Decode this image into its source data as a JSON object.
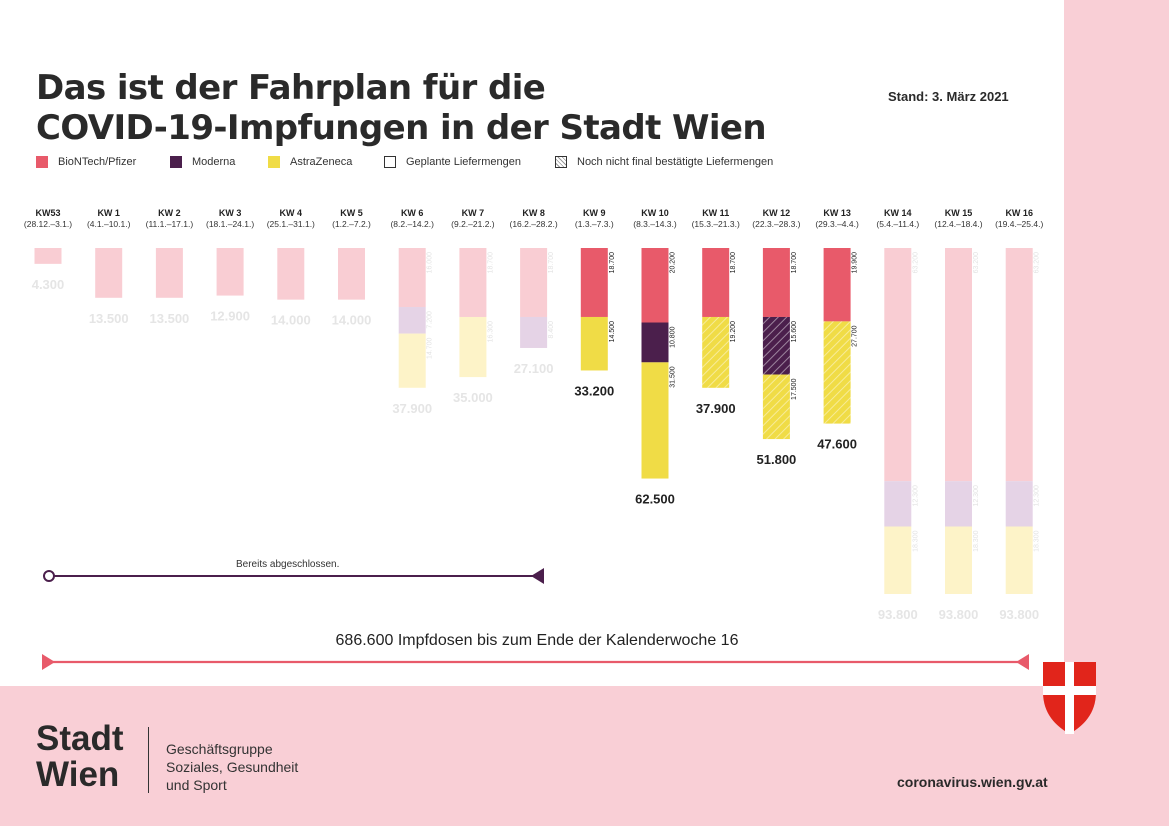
{
  "header": {
    "title_line1": "Das ist der Fahrplan für die",
    "title_line2": "COVID-19-Impfungen in der Stadt Wien",
    "stand": "Stand: 3. März 2021"
  },
  "legend": {
    "biontech": "BioNTech/Pfizer",
    "moderna": "Moderna",
    "astrazeneca": "AstraZeneca",
    "planned": "Geplante Liefermengen",
    "unconfirmed": "Noch nicht final bestätigte Liefermengen"
  },
  "colors": {
    "biontech": "#e85a6a",
    "moderna": "#4b1f4c",
    "astrazeneca": "#f0dc46",
    "biontech_light": "#f9cdd3",
    "moderna_light": "#e5d3e6",
    "astrazeneca_light": "#fdf3c8",
    "faded_text": "#e5e5e5",
    "timeline_purple": "#4b1f4c",
    "timeline_pink": "#e85a6a"
  },
  "chart_data": {
    "type": "bar",
    "stacked": true,
    "title": "Das ist der Fahrplan für die COVID-19-Impfungen in der Stadt Wien",
    "unit": "Impfdosen",
    "series_names": [
      "BioNTech/Pfizer",
      "Moderna",
      "AstraZeneca"
    ],
    "weeks": [
      {
        "kw": "KW53",
        "dates": "(28.12.–3.1.)",
        "total": "4.300",
        "status": "completed",
        "segments": [
          {
            "s": "biontech",
            "value": 4300,
            "label": ""
          }
        ]
      },
      {
        "kw": "KW 1",
        "dates": "(4.1.–10.1.)",
        "total": "13.500",
        "status": "completed",
        "segments": [
          {
            "s": "biontech",
            "value": 13500,
            "label": ""
          }
        ]
      },
      {
        "kw": "KW 2",
        "dates": "(11.1.–17.1.)",
        "total": "13.500",
        "status": "completed",
        "segments": [
          {
            "s": "biontech",
            "value": 13500,
            "label": ""
          }
        ]
      },
      {
        "kw": "KW 3",
        "dates": "(18.1.–24.1.)",
        "total": "12.900",
        "status": "completed",
        "segments": [
          {
            "s": "biontech",
            "value": 12900,
            "label": ""
          }
        ]
      },
      {
        "kw": "KW 4",
        "dates": "(25.1.–31.1.)",
        "total": "14.000",
        "status": "completed",
        "segments": [
          {
            "s": "biontech",
            "value": 14000,
            "label": ""
          }
        ]
      },
      {
        "kw": "KW 5",
        "dates": "(1.2.–7.2.)",
        "total": "14.000",
        "status": "completed",
        "segments": [
          {
            "s": "biontech",
            "value": 14000,
            "label": ""
          }
        ]
      },
      {
        "kw": "KW 6",
        "dates": "(8.2.–14.2.)",
        "total": "37.900",
        "status": "completed",
        "segments": [
          {
            "s": "biontech",
            "value": 16000,
            "label": "16.000"
          },
          {
            "s": "moderna",
            "value": 7200,
            "label": "7.200"
          },
          {
            "s": "astrazeneca",
            "value": 14700,
            "label": "14.700"
          }
        ]
      },
      {
        "kw": "KW 7",
        "dates": "(9.2.–21.2.)",
        "total": "35.000",
        "status": "completed",
        "segments": [
          {
            "s": "biontech",
            "value": 18700,
            "label": "18.700"
          },
          {
            "s": "astrazeneca",
            "value": 16300,
            "label": "16.300"
          }
        ]
      },
      {
        "kw": "KW 8",
        "dates": "(16.2.–28.2.)",
        "total": "27.100",
        "status": "completed",
        "segments": [
          {
            "s": "biontech",
            "value": 18700,
            "label": "18.700"
          },
          {
            "s": "moderna",
            "value": 8400,
            "label": "8.400"
          }
        ]
      },
      {
        "kw": "KW 9",
        "dates": "(1.3.–7.3.)",
        "total": "33.200",
        "status": "planned",
        "segments": [
          {
            "s": "biontech",
            "value": 18700,
            "label": "18.700"
          },
          {
            "s": "astrazeneca",
            "value": 14500,
            "label": "14.500"
          }
        ]
      },
      {
        "kw": "KW 10",
        "dates": "(8.3.–14.3.)",
        "total": "62.500",
        "status": "planned",
        "segments": [
          {
            "s": "biontech",
            "value": 20200,
            "label": "20.200"
          },
          {
            "s": "moderna",
            "value": 10800,
            "label": "10.800"
          },
          {
            "s": "astrazeneca",
            "value": 31500,
            "label": "31.500"
          }
        ]
      },
      {
        "kw": "KW 11",
        "dates": "(15.3.–21.3.)",
        "total": "37.900",
        "status": "planned",
        "segments": [
          {
            "s": "biontech",
            "value": 18700,
            "label": "18.700"
          },
          {
            "s": "astrazeneca",
            "value": 19200,
            "label": "19.200",
            "hatched": true
          }
        ]
      },
      {
        "kw": "KW 12",
        "dates": "(22.3.–28.3.)",
        "total": "51.800",
        "status": "planned",
        "segments": [
          {
            "s": "biontech",
            "value": 18700,
            "label": "18.700"
          },
          {
            "s": "moderna",
            "value": 15600,
            "label": "15.600",
            "hatched": true
          },
          {
            "s": "astrazeneca",
            "value": 17500,
            "label": "17.500",
            "hatched": true
          }
        ]
      },
      {
        "kw": "KW 13",
        "dates": "(29.3.–4.4.)",
        "total": "47.600",
        "status": "planned",
        "segments": [
          {
            "s": "biontech",
            "value": 19900,
            "label": "19.900"
          },
          {
            "s": "astrazeneca",
            "value": 27700,
            "label": "27.700",
            "hatched": true
          }
        ]
      },
      {
        "kw": "KW 14",
        "dates": "(5.4.–11.4.)",
        "total": "93.800",
        "status": "future",
        "segments": [
          {
            "s": "biontech",
            "value": 63200,
            "label": "63.200"
          },
          {
            "s": "moderna",
            "value": 12300,
            "label": "12.300"
          },
          {
            "s": "astrazeneca",
            "value": 18300,
            "label": "18.300"
          }
        ]
      },
      {
        "kw": "KW 15",
        "dates": "(12.4.–18.4.)",
        "total": "93.800",
        "status": "future",
        "segments": [
          {
            "s": "biontech",
            "value": 63200,
            "label": "63.200"
          },
          {
            "s": "moderna",
            "value": 12300,
            "label": "12.300"
          },
          {
            "s": "astrazeneca",
            "value": 18300,
            "label": "18.300"
          }
        ]
      },
      {
        "kw": "KW 16",
        "dates": "(19.4.–25.4.)",
        "total": "93.800",
        "status": "future",
        "segments": [
          {
            "s": "biontech",
            "value": 63200,
            "label": "63.200"
          },
          {
            "s": "moderna",
            "value": 12300,
            "label": "12.300"
          },
          {
            "s": "astrazeneca",
            "value": 18300,
            "label": "18.300"
          }
        ]
      }
    ]
  },
  "timeline": {
    "completed_label": "Bereits abgeschlossen.",
    "total_label": "686.600 Impfdosen bis zum Ende der Kalenderwoche 16"
  },
  "footer": {
    "logo_line1": "Stadt",
    "logo_line2": "Wien",
    "dept_line1": "Geschäftsgruppe",
    "dept_line2": "Soziales, Gesundheit",
    "dept_line3": "und Sport",
    "url": "coronavirus.wien.gv.at"
  }
}
